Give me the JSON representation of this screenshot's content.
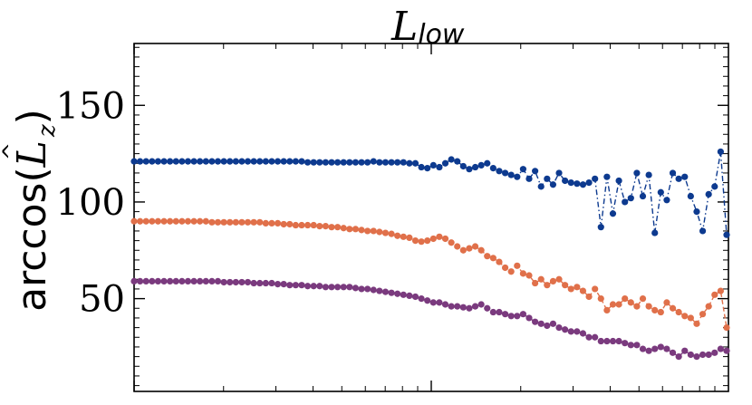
{
  "chart_data": {
    "type": "line",
    "title_main": "L",
    "title_sub": "low",
    "ylabel_main": "arccos(",
    "ylabel_var": "L",
    "ylabel_hat": "^",
    "ylabel_sub": "z",
    "ylabel_close": ")",
    "ylim": [
      2,
      182
    ],
    "x_scale": "log",
    "xlim": [
      1,
      100
    ],
    "xticklabels": [],
    "yticks": [
      50,
      100,
      150
    ],
    "yticklabels": [
      "50",
      "100",
      "150"
    ],
    "grid": false,
    "legend": "none",
    "series": [
      {
        "color": "#0d3a8f",
        "linestyle": "dashdot",
        "values": [
          121,
          121,
          121,
          121,
          121,
          121,
          121,
          121,
          121,
          121,
          121,
          121,
          121,
          121,
          121,
          121,
          121,
          121,
          121,
          121,
          121,
          121,
          121,
          121,
          121,
          121,
          121,
          121,
          121,
          120.5,
          120.5,
          120.5,
          120.5,
          120.5,
          120.5,
          120.5,
          120.5,
          120.5,
          120.5,
          120.5,
          121,
          120.5,
          120.5,
          120.5,
          120.5,
          120.5,
          120,
          120,
          118,
          117.5,
          119,
          118,
          120,
          122,
          121,
          118.5,
          117,
          118,
          119,
          120,
          117.5,
          116,
          115,
          114,
          113,
          117,
          112,
          116,
          108,
          112,
          109,
          115,
          111,
          110,
          109.5,
          109,
          110,
          112,
          87,
          113,
          94,
          111,
          100,
          102,
          115,
          103,
          114,
          84,
          105,
          101,
          115,
          112,
          113,
          103,
          95,
          85,
          104,
          108,
          126,
          83
        ]
      },
      {
        "color": "#e0704a",
        "linestyle": "dashed",
        "values": [
          90,
          90,
          90,
          90,
          90,
          90,
          90,
          90,
          90,
          90,
          90,
          90,
          90,
          89.5,
          89.5,
          89.5,
          89.5,
          89.5,
          89.5,
          89.5,
          89.5,
          89.5,
          89,
          89,
          89,
          88.5,
          88.5,
          88,
          88,
          88,
          88,
          87.5,
          87.5,
          87,
          87,
          86.5,
          86,
          86,
          85.5,
          85,
          85,
          84.5,
          84,
          83.5,
          82.5,
          82,
          81.5,
          80,
          79.5,
          80,
          81,
          82,
          81,
          79,
          77,
          75,
          76,
          77,
          75,
          72,
          71,
          69,
          66,
          64,
          67,
          63,
          62,
          58,
          60,
          57,
          59,
          60,
          57,
          55,
          56,
          54,
          51,
          55,
          50,
          44,
          47,
          47,
          50,
          48,
          46,
          50,
          46,
          44,
          43,
          48,
          45,
          43,
          41,
          40,
          37,
          42,
          46,
          52,
          54,
          35
        ]
      },
      {
        "color": "#7a3a7e",
        "linestyle": "dashed",
        "values": [
          59,
          59,
          59,
          59,
          59,
          59,
          59,
          59,
          59,
          59,
          59,
          59,
          59,
          59,
          59,
          58.5,
          58.5,
          58.5,
          58.5,
          58.5,
          58,
          58,
          58,
          58,
          57.5,
          57.5,
          57,
          57,
          57,
          56.5,
          56.5,
          56.5,
          56,
          56,
          56,
          56,
          56,
          55.5,
          55,
          55,
          54.5,
          54,
          53.5,
          53,
          52.5,
          52,
          51.5,
          51,
          50,
          49,
          48,
          48,
          47,
          46,
          46,
          45.5,
          45,
          46,
          47,
          45,
          43,
          43,
          42,
          41,
          41,
          42,
          40,
          38,
          37,
          36,
          37,
          35,
          34,
          33,
          33,
          32,
          30,
          30,
          28,
          28,
          28,
          28,
          27,
          26,
          26,
          24,
          23,
          24,
          25,
          24,
          22,
          20,
          23,
          21,
          20,
          21,
          21,
          22,
          24,
          23
        ]
      }
    ]
  }
}
